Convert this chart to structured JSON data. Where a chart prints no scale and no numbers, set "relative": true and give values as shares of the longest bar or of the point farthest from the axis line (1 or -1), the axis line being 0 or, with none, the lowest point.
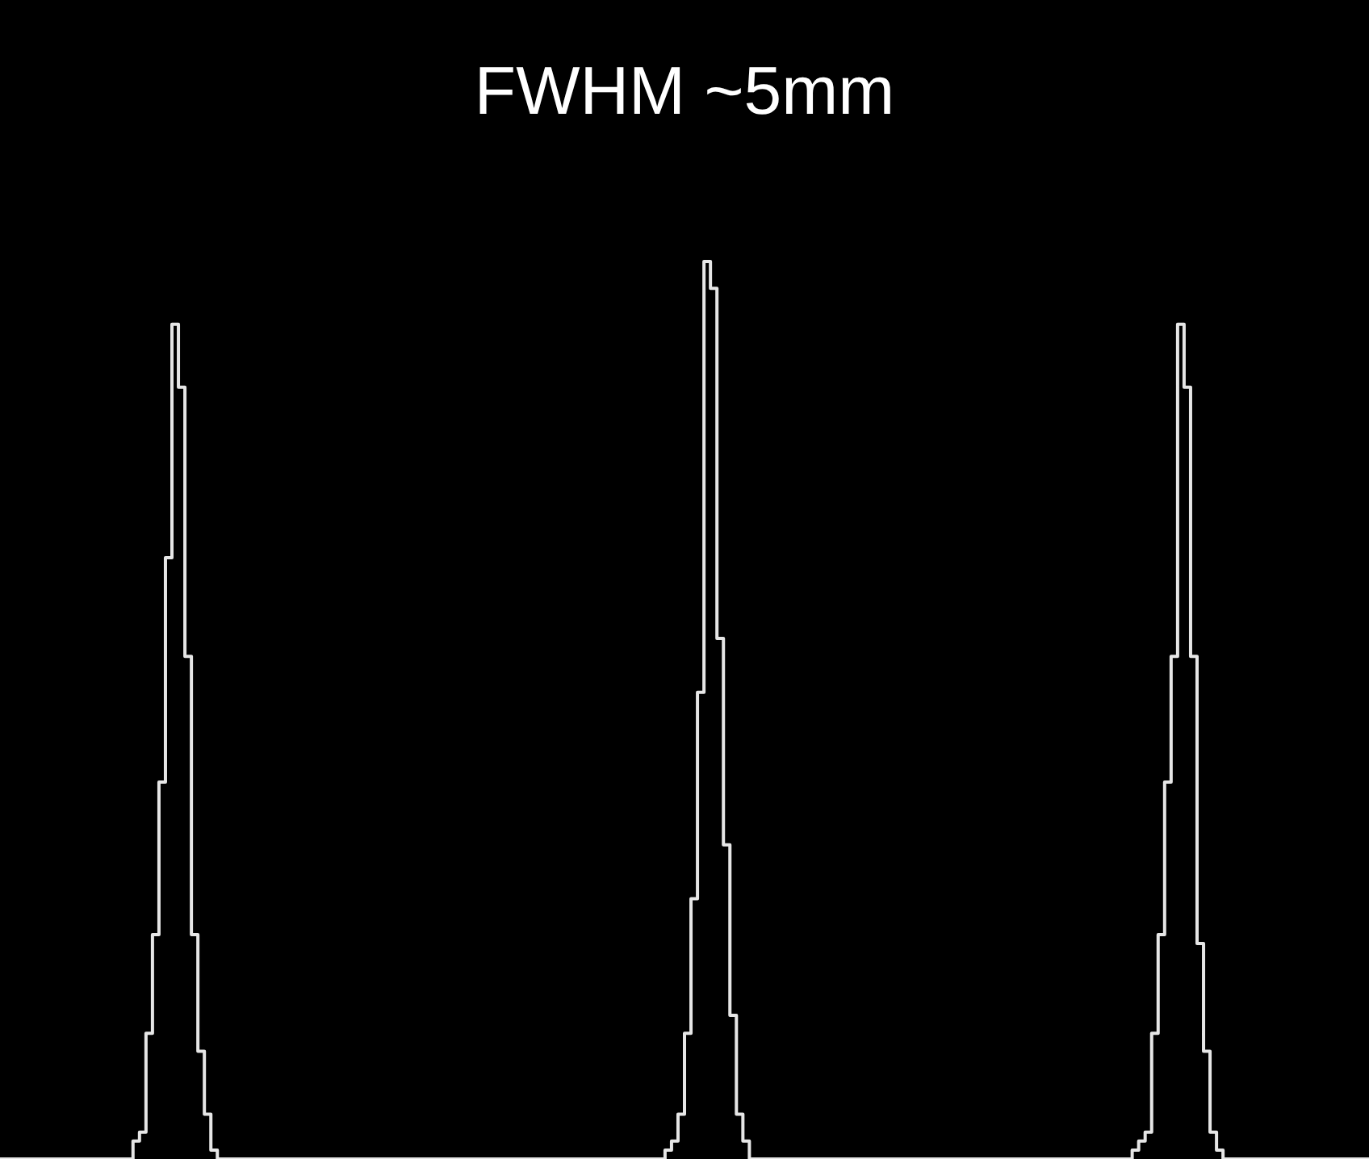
{
  "chart_data": {
    "type": "step",
    "title": "FWHM ~5mm",
    "relative": true,
    "categories": [
      null,
      null,
      null,
      null,
      null,
      null,
      null,
      null,
      null,
      null,
      null,
      null,
      null,
      null,
      null,
      null,
      null,
      null,
      null,
      null,
      null,
      null,
      null,
      null,
      null,
      null,
      null,
      null,
      null,
      null,
      null,
      null,
      null,
      null,
      null,
      null,
      null,
      null,
      null,
      null,
      null,
      null,
      null,
      null,
      null,
      null,
      null,
      null,
      null,
      null,
      null,
      null,
      null,
      null,
      null,
      null,
      null,
      null,
      null,
      null,
      null,
      null,
      null,
      null,
      null,
      null,
      null,
      null,
      null,
      null,
      null,
      null,
      null,
      null,
      null,
      null,
      null,
      null,
      null,
      null,
      null,
      null,
      null,
      null,
      null,
      null,
      null,
      null,
      null,
      null,
      null,
      null,
      null,
      null,
      null,
      null,
      null,
      null,
      null,
      null,
      null,
      null,
      null,
      null,
      null,
      null,
      null,
      null,
      null,
      null,
      null,
      null,
      null,
      null,
      null,
      null,
      null,
      null,
      null,
      null,
      null,
      null,
      null,
      null,
      null,
      null,
      null,
      null,
      null,
      null,
      null,
      null,
      null,
      null,
      null,
      null,
      null,
      null,
      null,
      null,
      null,
      null,
      null,
      null,
      null,
      null,
      null,
      null,
      null,
      null,
      null,
      null,
      null,
      null,
      null,
      null,
      null,
      null,
      null,
      null,
      null,
      null,
      null,
      null,
      null,
      null,
      null,
      null,
      null,
      null,
      null,
      null,
      null,
      null,
      null,
      null,
      null,
      null,
      null,
      null,
      null,
      null,
      null,
      null,
      null,
      null,
      null,
      null,
      null,
      null,
      null,
      null,
      null,
      null,
      null,
      null,
      null,
      null,
      null,
      null,
      null,
      null,
      null,
      null,
      null,
      null,
      null,
      null,
      null,
      null,
      null,
      null
    ],
    "series": [
      {
        "color": "#e6e6e6",
        "values": [
          0,
          0,
          0,
          0,
          0,
          0,
          0,
          0,
          0,
          0,
          0,
          0,
          0,
          0,
          0,
          0,
          0,
          0,
          0,
          0,
          0,
          0.02,
          0.03,
          0.14,
          0.25,
          0.42,
          0.67,
          0.93,
          0.86,
          0.56,
          0.25,
          0.12,
          0.05,
          0.01,
          0,
          0,
          0,
          0,
          0,
          0,
          0,
          0,
          0,
          0,
          0,
          0,
          0,
          0,
          0,
          0,
          0,
          0,
          0,
          0,
          0,
          0,
          0,
          0,
          0,
          0,
          0,
          0,
          0,
          0,
          0,
          0,
          0,
          0,
          0,
          0,
          0,
          0,
          0,
          0,
          0,
          0,
          0,
          0,
          0,
          0,
          0,
          0,
          0,
          0,
          0,
          0,
          0,
          0,
          0,
          0,
          0,
          0,
          0,
          0,
          0,
          0,
          0,
          0,
          0,
          0,
          0,
          0,
          0,
          0.01,
          0.02,
          0.05,
          0.14,
          0.29,
          0.52,
          1,
          0.97,
          0.58,
          0.35,
          0.16,
          0.05,
          0.02,
          0,
          0,
          0,
          0,
          0,
          0,
          0,
          0,
          0,
          0,
          0,
          0,
          0,
          0,
          0,
          0,
          0,
          0,
          0,
          0,
          0,
          0,
          0,
          0,
          0,
          0,
          0,
          0,
          0,
          0,
          0,
          0,
          0,
          0,
          0,
          0,
          0,
          0,
          0,
          0,
          0,
          0,
          0,
          0,
          0,
          0,
          0,
          0,
          0,
          0,
          0,
          0,
          0,
          0,
          0,
          0,
          0,
          0,
          0,
          0.01,
          0.02,
          0.03,
          0.14,
          0.25,
          0.42,
          0.56,
          0.93,
          0.86,
          0.56,
          0.24,
          0.12,
          0.03,
          0.01,
          0,
          0,
          0,
          0,
          0,
          0,
          0,
          0,
          0,
          0,
          0,
          0,
          0,
          0,
          0,
          0,
          0,
          0,
          0,
          0,
          0,
          0,
          0
        ]
      }
    ]
  }
}
